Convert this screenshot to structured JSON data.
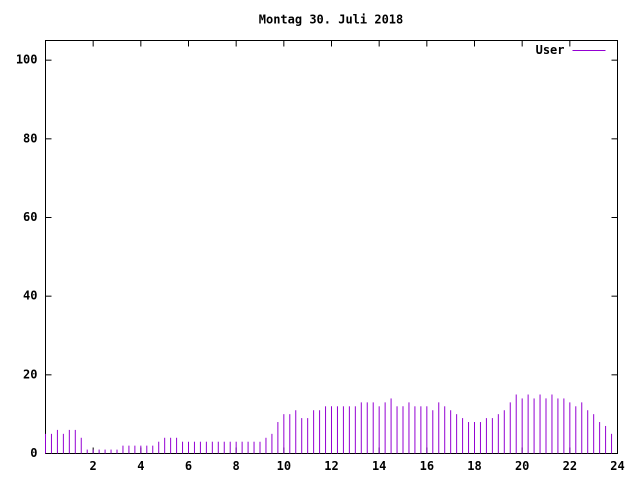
{
  "chart_data": {
    "type": "impulse",
    "title": "Montag 30. Juli 2018",
    "x": [
      0,
      0.25,
      0.5,
      0.75,
      1,
      1.25,
      1.5,
      1.75,
      2,
      2.25,
      2.5,
      2.75,
      3,
      3.25,
      3.5,
      3.75,
      4,
      4.25,
      4.5,
      4.75,
      5,
      5.25,
      5.5,
      5.75,
      6,
      6.25,
      6.5,
      6.75,
      7,
      7.25,
      7.5,
      7.75,
      8,
      8.25,
      8.5,
      8.75,
      9,
      9.25,
      9.5,
      9.75,
      10,
      10.25,
      10.5,
      10.75,
      11,
      11.25,
      11.5,
      11.75,
      12,
      12.25,
      12.5,
      12.75,
      13,
      13.25,
      13.5,
      13.75,
      14,
      14.25,
      14.5,
      14.75,
      15,
      15.25,
      15.5,
      15.75,
      16,
      16.25,
      16.5,
      16.75,
      17,
      17.25,
      17.5,
      17.75,
      18,
      18.25,
      18.5,
      18.75,
      19,
      19.25,
      19.5,
      19.75,
      20,
      20.25,
      20.5,
      20.75,
      21,
      21.25,
      21.5,
      21.75,
      22,
      22.25,
      22.5,
      22.75,
      23,
      23.25,
      23.5,
      23.75
    ],
    "series": [
      {
        "name": "User",
        "color": "#9400d3",
        "values": [
          5,
          5,
          6,
          5,
          6,
          6,
          4,
          1,
          1,
          1,
          1,
          1,
          1,
          2,
          2,
          2,
          2,
          2,
          2,
          3,
          4,
          4,
          4,
          3,
          3,
          3,
          3,
          3,
          3,
          3,
          3,
          3,
          3,
          3,
          3,
          3,
          3,
          4,
          5,
          8,
          10,
          10,
          11,
          9,
          9,
          11,
          11,
          12,
          12,
          12,
          12,
          12,
          12,
          13,
          13,
          13,
          12,
          13,
          14,
          12,
          12,
          13,
          12,
          12,
          12,
          11,
          13,
          12,
          11,
          10,
          9,
          8,
          8,
          8,
          9,
          9,
          10,
          11,
          13,
          15,
          14,
          15,
          14,
          15,
          14,
          15,
          14,
          14,
          13,
          12,
          13,
          11,
          10,
          8,
          7,
          5
        ]
      }
    ],
    "xlim": [
      0,
      24
    ],
    "xticks": [
      2,
      4,
      6,
      8,
      10,
      12,
      14,
      16,
      18,
      20,
      22,
      24
    ],
    "ylim": [
      0,
      105
    ],
    "yticks": [
      0,
      20,
      40,
      60,
      80,
      100
    ],
    "legend": "top-right"
  }
}
